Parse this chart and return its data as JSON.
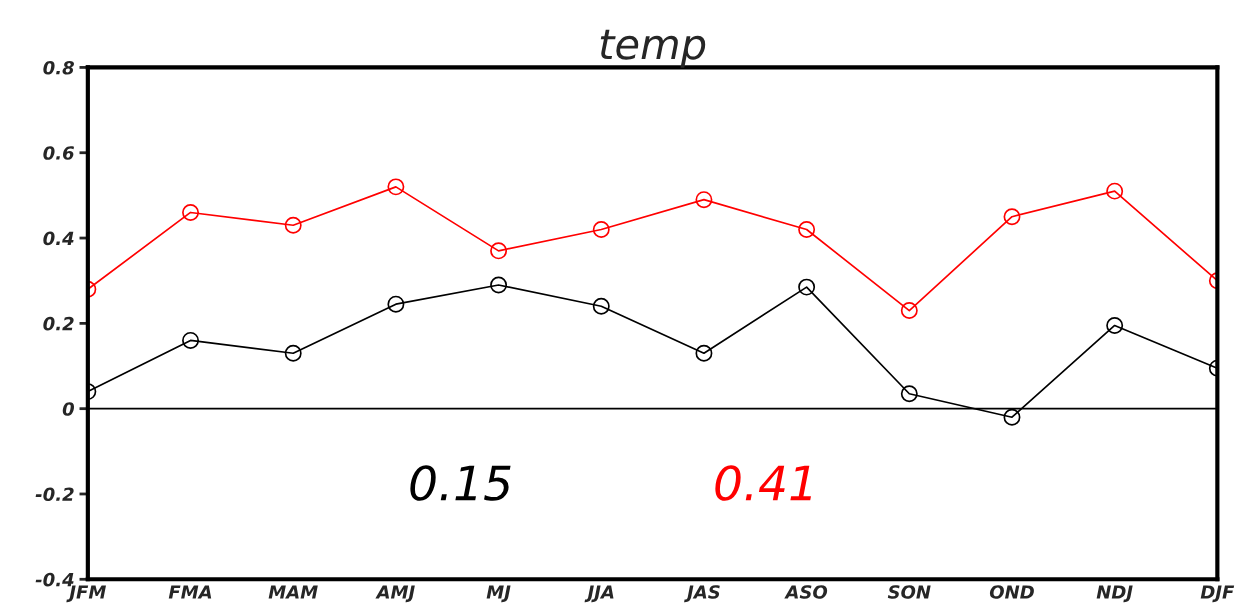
{
  "chart_data": {
    "type": "line",
    "title": "temp",
    "categories": [
      "JFM",
      "FMA",
      "MAM",
      "AMJ",
      "MJ",
      "JJA",
      "JAS",
      "ASO",
      "SON",
      "OND",
      "NDJ",
      "DJF"
    ],
    "series": [
      {
        "color": "#000000",
        "values": [
          0.04,
          0.16,
          0.13,
          0.245,
          0.29,
          0.24,
          0.13,
          0.285,
          0.035,
          -0.02,
          0.195,
          0.095
        ]
      },
      {
        "color": "#ff0000",
        "values": [
          0.28,
          0.46,
          0.43,
          0.52,
          0.37,
          0.42,
          0.49,
          0.42,
          0.23,
          0.45,
          0.51,
          0.3
        ]
      }
    ],
    "ylim": [
      -0.4,
      0.8
    ],
    "yticks": [
      {
        "value": -0.4,
        "label": "-0.4"
      },
      {
        "value": -0.2,
        "label": "-0.2"
      },
      0,
      0.2,
      0.4,
      0.6,
      0.8
    ],
    "ref_lines": [
      {
        "axis": "y",
        "value": 0,
        "color": "#000000"
      }
    ],
    "annotations": [
      "0.15",
      "0.41"
    ],
    "marker": "circle",
    "line_style": "solid",
    "grid": false,
    "legend": false
  }
}
